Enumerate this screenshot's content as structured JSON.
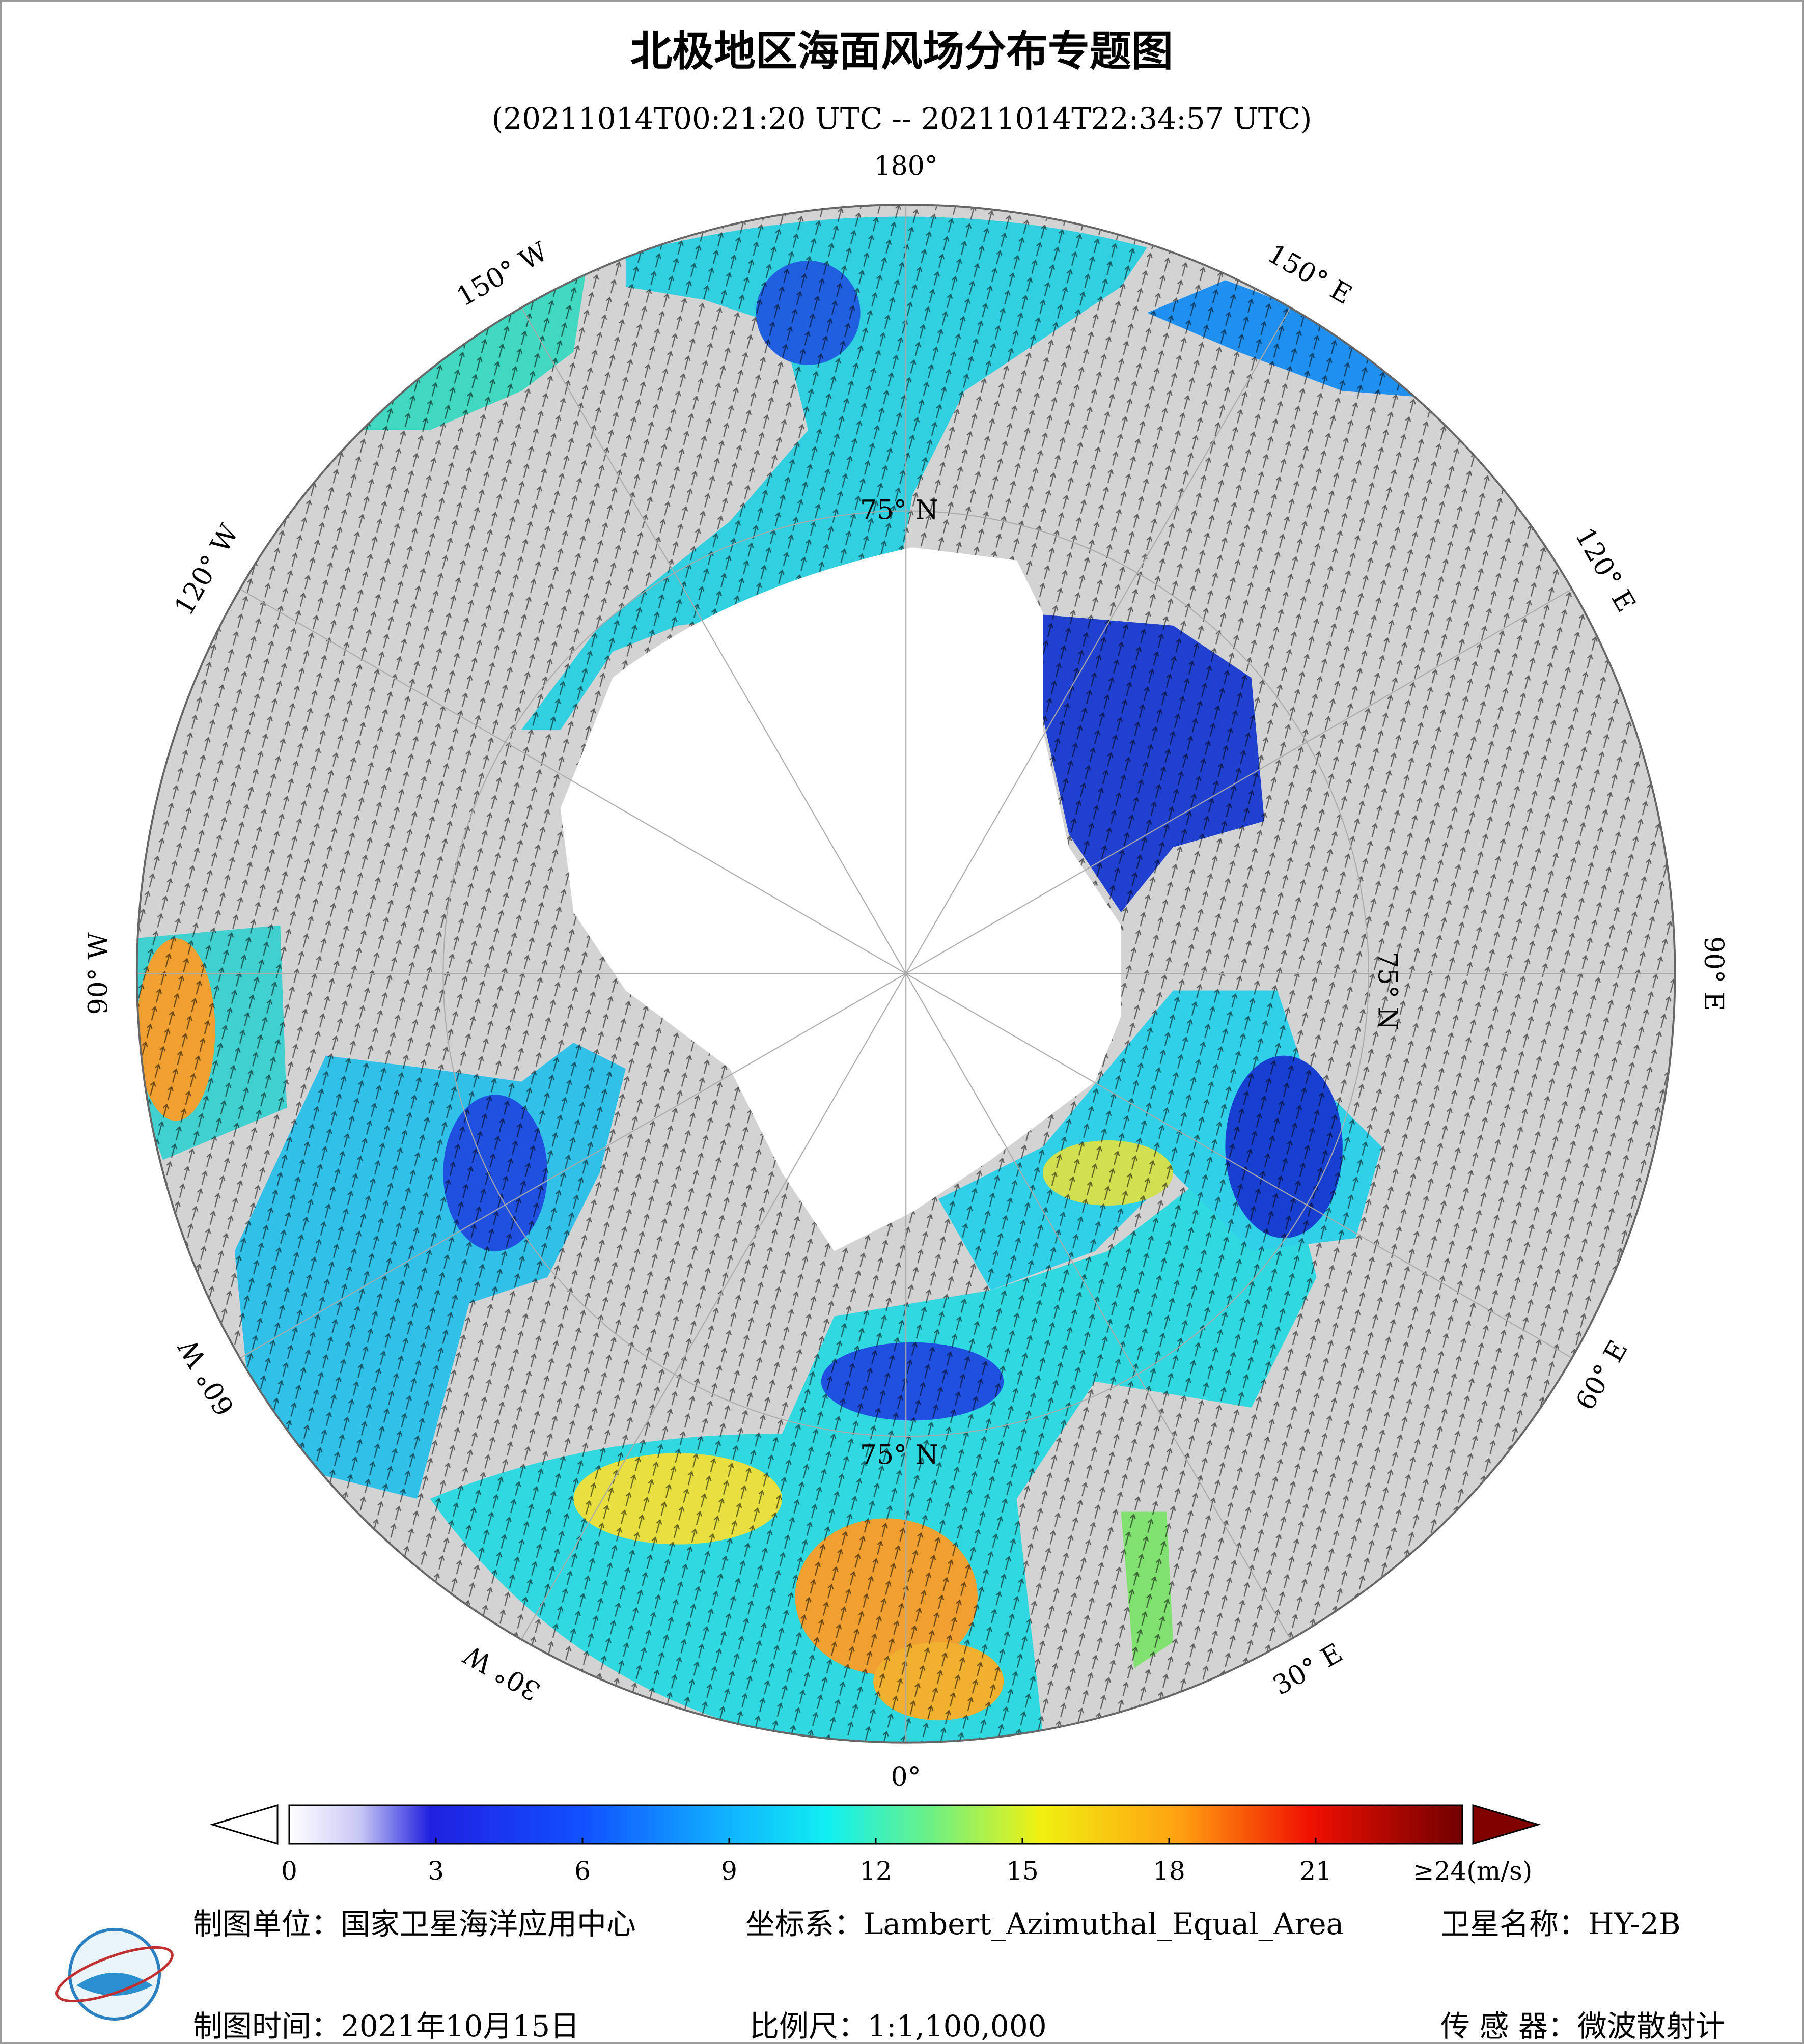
{
  "title": "北极地区海面风场分布专题图",
  "subtitle": "(20211014T00:21:20 UTC -- 20211014T22:34:57 UTC)",
  "map": {
    "longitude_labels": [
      "180°",
      "150° E",
      "120° E",
      "90° E",
      "60° E",
      "30° E",
      "0°",
      "30° W",
      "60° W",
      "90° W",
      "120° W",
      "150° W"
    ],
    "latitude_labels": [
      "75° N",
      "75° N",
      "75° N"
    ]
  },
  "colorbar": {
    "lim": [
      0,
      24
    ],
    "ticks": [
      0,
      3,
      6,
      9,
      12,
      15,
      18,
      21,
      {
        "value": 24,
        "label": "≥24(m/s)"
      }
    ]
  },
  "footer": {
    "unit": "制图单位：国家卫星海洋应用中心",
    "coordinate_system": "坐标系：Lambert_Azimuthal_Equal_Area",
    "satellite": "卫星名称：HY-2B",
    "date": "制图时间：2021年10月15日",
    "scale": "比例尺：1:1,100,000",
    "sensor": "传 感 器：微波散射计"
  }
}
